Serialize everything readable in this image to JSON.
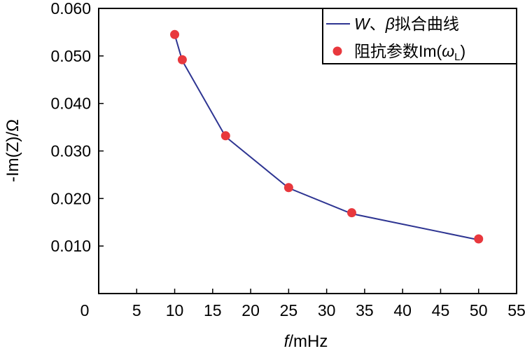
{
  "chart_data": {
    "type": "line",
    "title": "",
    "xlabel_italic": "f",
    "xlabel_rest": "/mHz",
    "ylabel": "-Im(Z)/Ω",
    "xlim": [
      0,
      55
    ],
    "ylim": [
      0,
      0.06
    ],
    "xticks": [
      0,
      5,
      10,
      15,
      20,
      25,
      30,
      35,
      40,
      45,
      50,
      55
    ],
    "xtick_labels": [
      "0",
      "5",
      "10",
      "15",
      "20",
      "25",
      "30",
      "35",
      "40",
      "45",
      "50",
      "55"
    ],
    "yticks": [
      0.01,
      0.02,
      0.03,
      0.04,
      0.05,
      0.06
    ],
    "ytick_labels": [
      "0.010",
      "0.020",
      "0.030",
      "0.040",
      "0.050",
      "0.060"
    ],
    "grid": false,
    "legend_position": "top-right",
    "legend": {
      "line_label_W": "W",
      "line_label_sep": "、",
      "line_label_beta": "β",
      "line_label_rest": "拟合曲线",
      "marker_label_main": "阻抗参数Im(",
      "marker_label_omega": "ω",
      "marker_label_sub": "L",
      "marker_label_close": ")"
    },
    "series": [
      {
        "name": "W、β拟合曲线",
        "kind": "line",
        "color": "#2e3592",
        "x": [
          10,
          11,
          16.7,
          25,
          33.3,
          50
        ],
        "y": [
          0.0545,
          0.049,
          0.033,
          0.0222,
          0.0168,
          0.0113
        ]
      },
      {
        "name": "阻抗参数Im(ωL)",
        "kind": "scatter",
        "color": "#e8383d",
        "x": [
          10,
          11,
          16.7,
          25,
          33.3,
          50
        ],
        "y": [
          0.0545,
          0.0492,
          0.0332,
          0.0223,
          0.017,
          0.0115
        ]
      }
    ]
  }
}
